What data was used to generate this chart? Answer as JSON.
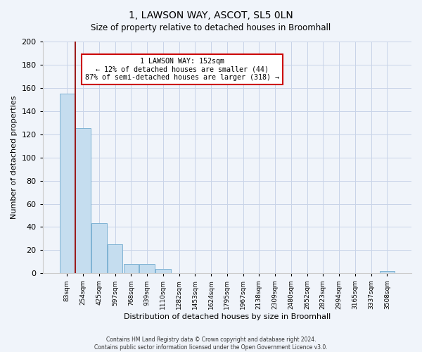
{
  "title": "1, LAWSON WAY, ASCOT, SL5 0LN",
  "subtitle": "Size of property relative to detached houses in Broomhall",
  "xlabel": "Distribution of detached houses by size in Broomhall",
  "ylabel": "Number of detached properties",
  "bar_labels": [
    "83sqm",
    "254sqm",
    "425sqm",
    "597sqm",
    "768sqm",
    "939sqm",
    "1110sqm",
    "1282sqm",
    "1453sqm",
    "1624sqm",
    "1795sqm",
    "1967sqm",
    "2138sqm",
    "2309sqm",
    "2480sqm",
    "2652sqm",
    "2823sqm",
    "2994sqm",
    "3165sqm",
    "3337sqm",
    "3508sqm"
  ],
  "bar_values": [
    155,
    125,
    43,
    25,
    8,
    8,
    4,
    0,
    0,
    0,
    0,
    0,
    0,
    0,
    0,
    0,
    0,
    0,
    0,
    0,
    2
  ],
  "bar_color": "#c5ddef",
  "bar_edge_color": "#7fb3d3",
  "property_line_x": 0.5,
  "annotation_title": "1 LAWSON WAY: 152sqm",
  "annotation_line1": "← 12% of detached houses are smaller (44)",
  "annotation_line2": "87% of semi-detached houses are larger (318) →",
  "ylim": [
    0,
    200
  ],
  "yticks": [
    0,
    20,
    40,
    60,
    80,
    100,
    120,
    140,
    160,
    180,
    200
  ],
  "footer1": "Contains HM Land Registry data © Crown copyright and database right 2024.",
  "footer2": "Contains public sector information licensed under the Open Government Licence v3.0.",
  "bg_color": "#f0f4fa",
  "grid_color": "#cccccc",
  "annotation_box_color": "#ffffff",
  "annotation_box_edge": "#cc0000",
  "property_line_color": "#9b1c1c"
}
